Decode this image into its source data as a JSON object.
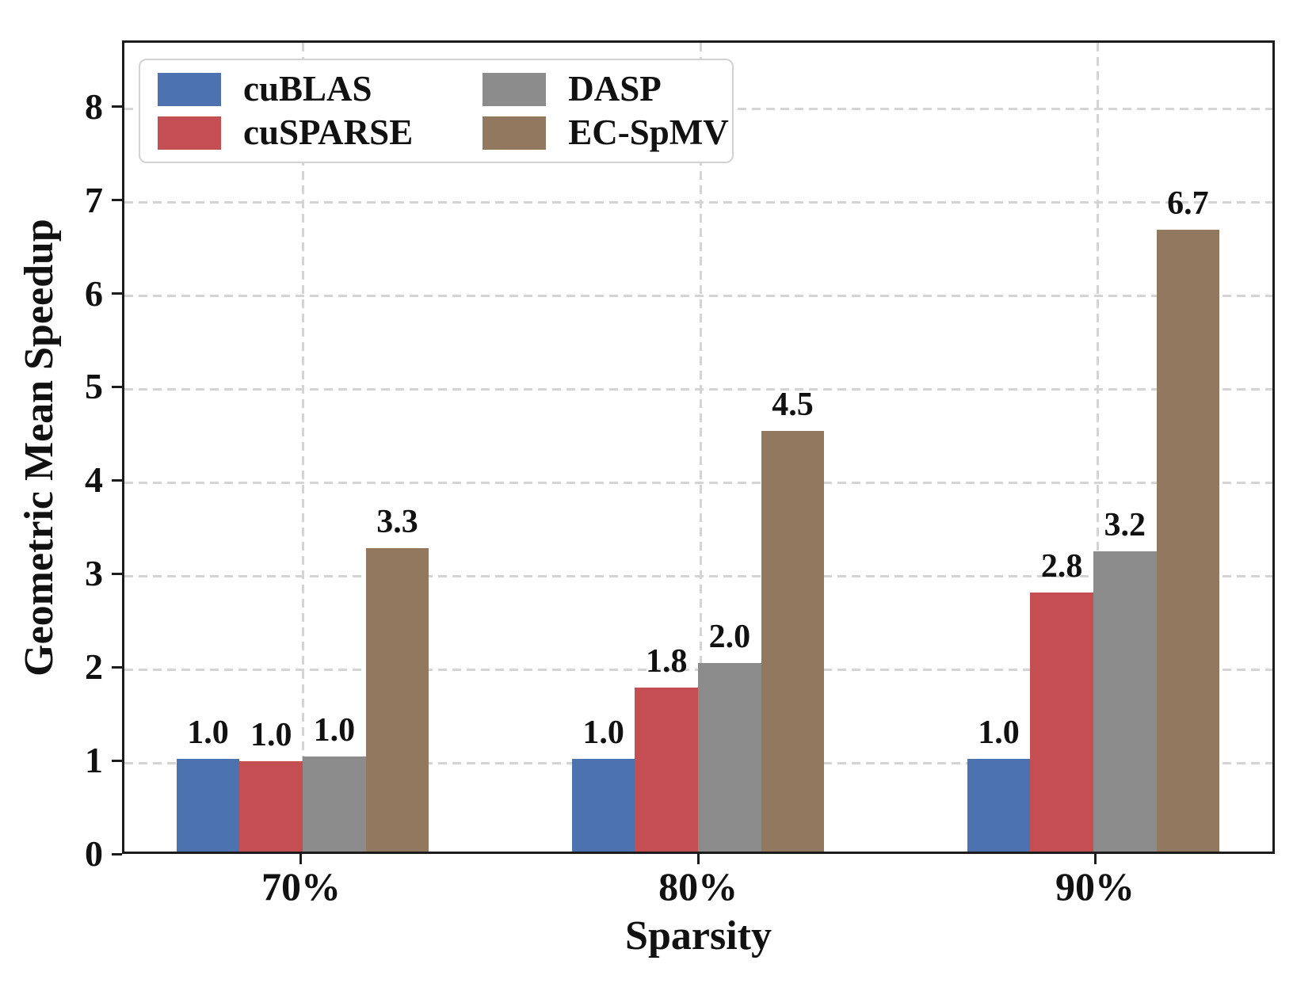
{
  "chart_data": {
    "type": "bar",
    "title": "",
    "xlabel": "Sparsity",
    "ylabel": "Geometric Mean Speedup",
    "categories": [
      "70%",
      "80%",
      "90%"
    ],
    "series": [
      {
        "name": "cuBLAS",
        "color": "#4C72B0",
        "values": [
          1.0,
          1.0,
          1.0
        ],
        "labels": [
          "1.0",
          "1.0",
          "1.0"
        ],
        "values_precise": [
          1.0,
          1.0,
          1.0
        ]
      },
      {
        "name": "cuSPARSE",
        "color": "#C44E52",
        "values": [
          1.0,
          1.8,
          2.8
        ],
        "labels": [
          "1.0",
          "1.8",
          "2.8"
        ],
        "values_precise": [
          0.97,
          1.77,
          2.79
        ]
      },
      {
        "name": "DASP",
        "color": "#8C8C8C",
        "values": [
          1.0,
          2.0,
          3.2
        ],
        "labels": [
          "1.0",
          "2.0",
          "3.2"
        ],
        "values_precise": [
          1.02,
          2.03,
          3.23
        ]
      },
      {
        "name": "EC-SpMV",
        "color": "#937860",
        "values": [
          3.3,
          4.5,
          6.7
        ],
        "labels": [
          "3.3",
          "4.5",
          "6.7"
        ],
        "values_precise": [
          3.27,
          4.53,
          6.7
        ]
      }
    ],
    "y_ticks": [
      0,
      1,
      2,
      3,
      4,
      5,
      6,
      7,
      8
    ],
    "ylim": [
      0,
      8.71
    ],
    "grid": "dashed-both-axes",
    "legend_position": "upper left",
    "legend_columns": 2
  }
}
